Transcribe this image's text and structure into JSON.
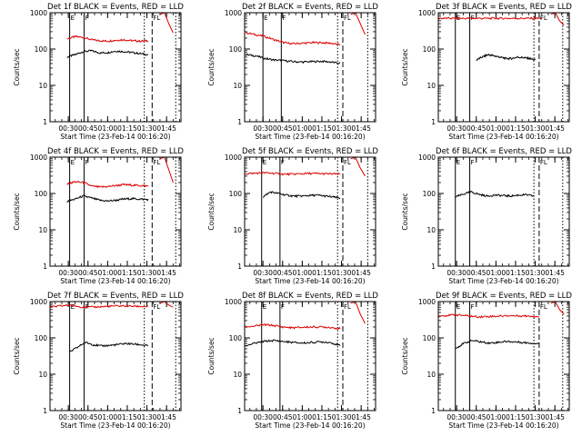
{
  "chart_data": [
    {
      "type": "line",
      "title": "Det 1f BLACK = Events, RED = LLD",
      "xlabel": "Start Time (23-Feb-14 00:16:20)",
      "ylabel": "Counts/sec",
      "yscale": "log",
      "ylim": [
        1,
        1000
      ],
      "xlim": [
        "00:16",
        "01:56"
      ],
      "x_ticks": [
        "00:30",
        "00:45",
        "01:00",
        "01:15",
        "01:30",
        "01:45"
      ],
      "y_ticks": [
        "1",
        "10",
        "100",
        "1000"
      ],
      "markers": [
        {
          "time": "00:31",
          "style": "solid",
          "label": "E"
        },
        {
          "time": "00:42",
          "style": "solid",
          "label": "F"
        },
        {
          "time": "01:28",
          "style": "dotted",
          "label": ""
        },
        {
          "time": "01:34",
          "style": "dashed",
          "label": "FL"
        },
        {
          "time": "01:52",
          "style": "dotted",
          "label": ""
        }
      ],
      "series": [
        {
          "key": "events",
          "color": "#000000",
          "x_range": [
            "00:29",
            "01:31"
          ],
          "values": [
            60,
            70,
            85,
            90,
            78,
            80,
            88,
            85,
            80,
            75,
            70
          ]
        },
        {
          "key": "lld",
          "color": "#dd0000",
          "x_range": [
            "00:29",
            "01:31"
          ],
          "values": [
            190,
            220,
            210,
            180,
            170,
            165,
            175,
            180,
            170,
            165,
            170
          ],
          "tail": {
            "x_range": [
              "01:40",
              "01:50"
            ],
            "values": [
              900,
              1000,
              500,
              280
            ]
          }
        }
      ]
    },
    {
      "type": "line",
      "title": "Det 2f BLACK = Events, RED = LLD",
      "xlabel": "Start Time (23-Feb-14 00:16:20)",
      "ylabel": "Counts/sec",
      "yscale": "log",
      "ylim": [
        1,
        1000
      ],
      "xlim": [
        "00:16",
        "01:56"
      ],
      "x_ticks": [
        "00:30",
        "00:45",
        "01:00",
        "01:15",
        "01:30",
        "01:45"
      ],
      "y_ticks": [
        "1",
        "10",
        "100",
        "1000"
      ],
      "markers": [
        {
          "time": "00:30",
          "style": "solid",
          "label": "E"
        },
        {
          "time": "00:44",
          "style": "solid",
          "label": "F"
        },
        {
          "time": "01:27",
          "style": "dotted",
          "label": ""
        },
        {
          "time": "01:31",
          "style": "dashed",
          "label": "FL"
        },
        {
          "time": "01:50",
          "style": "dotted",
          "label": ""
        }
      ],
      "series": [
        {
          "key": "events",
          "color": "#000000",
          "x_range": [
            "00:17",
            "01:29"
          ],
          "values": [
            70,
            65,
            55,
            50,
            48,
            45,
            44,
            45,
            46,
            44,
            40
          ]
        },
        {
          "key": "lld",
          "color": "#dd0000",
          "x_range": [
            "00:17",
            "01:29"
          ],
          "values": [
            280,
            250,
            220,
            180,
            150,
            140,
            145,
            150,
            150,
            145,
            130
          ],
          "tail": {
            "x_range": [
              "01:37",
              "01:48"
            ],
            "values": [
              900,
              1000,
              500,
              250
            ]
          }
        }
      ]
    },
    {
      "type": "line",
      "title": "Det 3f BLACK = Events, RED = LLD",
      "xlabel": "Start Time (23-Feb-14 00:16:20)",
      "ylabel": "Counts/sec",
      "yscale": "log",
      "ylim": [
        1,
        1000
      ],
      "xlim": [
        "00:16",
        "01:56"
      ],
      "x_ticks": [
        "00:30",
        "00:45",
        "01:00",
        "01:15",
        "01:30",
        "01:45"
      ],
      "y_ticks": [
        "1",
        "10",
        "100",
        "1000"
      ],
      "markers": [
        {
          "time": "00:29",
          "style": "solid",
          "label": "E"
        },
        {
          "time": "00:40",
          "style": "solid",
          "label": "F"
        },
        {
          "time": "01:29",
          "style": "dotted",
          "label": ""
        },
        {
          "time": "01:33",
          "style": "dashed",
          "label": "FL"
        },
        {
          "time": "01:51",
          "style": "dotted",
          "label": ""
        }
      ],
      "series": [
        {
          "key": "events",
          "color": "#000000",
          "x_range": [
            "00:45",
            "01:30"
          ],
          "values": [
            50,
            60,
            70,
            65,
            60,
            55,
            55,
            60,
            58,
            55,
            50
          ]
        },
        {
          "key": "lld",
          "color": "#dd0000",
          "x_range": [
            "00:16",
            "01:35"
          ],
          "values": [
            700,
            700,
            700,
            700,
            700,
            700,
            700,
            700,
            700,
            700,
            700
          ],
          "tail": {
            "x_range": [
              "01:42",
              "01:52"
            ],
            "values": [
              900,
              1000,
              600,
              450
            ]
          }
        }
      ]
    },
    {
      "type": "line",
      "title": "Det 4f BLACK = Events, RED = LLD",
      "xlabel": "Start Time (23-Feb-14 00:16:20)",
      "ylabel": "Counts/sec",
      "yscale": "log",
      "ylim": [
        1,
        1000
      ],
      "xlim": [
        "00:16",
        "01:56"
      ],
      "x_ticks": [
        "00:30",
        "00:45",
        "01:00",
        "01:15",
        "01:30",
        "01:45"
      ],
      "y_ticks": [
        "1",
        "10",
        "100",
        "1000"
      ],
      "markers": [
        {
          "time": "00:31",
          "style": "solid",
          "label": "E"
        },
        {
          "time": "00:42",
          "style": "solid",
          "label": "F"
        },
        {
          "time": "01:28",
          "style": "dotted",
          "label": ""
        },
        {
          "time": "01:34",
          "style": "dashed",
          "label": "FL"
        },
        {
          "time": "01:52",
          "style": "dotted",
          "label": ""
        }
      ],
      "series": [
        {
          "key": "events",
          "color": "#000000",
          "x_range": [
            "00:29",
            "01:31"
          ],
          "values": [
            60,
            70,
            85,
            75,
            65,
            62,
            65,
            70,
            72,
            70,
            68
          ]
        },
        {
          "key": "lld",
          "color": "#dd0000",
          "x_range": [
            "00:29",
            "01:31"
          ],
          "values": [
            180,
            210,
            200,
            160,
            150,
            155,
            165,
            175,
            170,
            165,
            160
          ],
          "tail": {
            "x_range": [
              "01:40",
              "01:50"
            ],
            "values": [
              900,
              1000,
              450,
              200
            ]
          }
        }
      ]
    },
    {
      "type": "line",
      "title": "Det 5f BLACK = Events, RED = LLD",
      "xlabel": "Start Time (23-Feb-14 00:16:20)",
      "ylabel": "Counts/sec",
      "yscale": "log",
      "ylim": [
        1,
        1000
      ],
      "xlim": [
        "00:16",
        "01:56"
      ],
      "x_ticks": [
        "00:30",
        "00:45",
        "01:00",
        "01:15",
        "01:30",
        "01:45"
      ],
      "y_ticks": [
        "1",
        "10",
        "100",
        "1000"
      ],
      "markers": [
        {
          "time": "00:29",
          "style": "solid",
          "label": "E"
        },
        {
          "time": "00:43",
          "style": "solid",
          "label": "F"
        },
        {
          "time": "01:27",
          "style": "dotted",
          "label": ""
        },
        {
          "time": "01:31",
          "style": "dashed",
          "label": "FL"
        },
        {
          "time": "01:50",
          "style": "dotted",
          "label": ""
        }
      ],
      "series": [
        {
          "key": "events",
          "color": "#000000",
          "x_range": [
            "00:30",
            "01:29"
          ],
          "values": [
            80,
            110,
            100,
            90,
            85,
            85,
            88,
            90,
            85,
            80,
            75
          ]
        },
        {
          "key": "lld",
          "color": "#dd0000",
          "x_range": [
            "00:16",
            "01:29"
          ],
          "values": [
            350,
            360,
            370,
            360,
            340,
            340,
            350,
            355,
            350,
            345,
            340
          ],
          "tail": {
            "x_range": [
              "01:37",
              "01:48"
            ],
            "values": [
              900,
              1000,
              500,
              300
            ]
          }
        }
      ]
    },
    {
      "type": "line",
      "title": "Det 6f BLACK = Events, RED = LLD",
      "xlabel": "Start Time (23-Feb-14 00:16:20)",
      "ylabel": "Counts/sec",
      "yscale": "log",
      "ylim": [
        1,
        1000
      ],
      "xlim": [
        "00:16",
        "01:56"
      ],
      "x_ticks": [
        "00:30",
        "00:45",
        "01:00",
        "01:15",
        "01:30",
        "01:45"
      ],
      "y_ticks": [
        "1",
        "10",
        "100",
        "1000"
      ],
      "markers": [
        {
          "time": "00:29",
          "style": "solid",
          "label": "E"
        },
        {
          "time": "00:40",
          "style": "solid",
          "label": "F"
        },
        {
          "time": "01:29",
          "style": "dotted",
          "label": ""
        },
        {
          "time": "01:33",
          "style": "dashed",
          "label": "FL"
        },
        {
          "time": "01:51",
          "style": "dotted",
          "label": ""
        }
      ],
      "series": [
        {
          "key": "events",
          "color": "#000000",
          "x_range": [
            "00:29",
            "01:29"
          ],
          "values": [
            80,
            95,
            110,
            95,
            85,
            90,
            88,
            85,
            90,
            92,
            85
          ]
        }
      ]
    },
    {
      "type": "line",
      "title": "Det 7f BLACK = Events, RED = LLD",
      "xlabel": "Start Time (23-Feb-14 00:16:20)",
      "ylabel": "Counts/sec",
      "yscale": "log",
      "ylim": [
        1,
        1000
      ],
      "xlim": [
        "00:16",
        "01:56"
      ],
      "x_ticks": [
        "00:30",
        "00:45",
        "01:00",
        "01:15",
        "01:30",
        "01:45"
      ],
      "y_ticks": [
        "1",
        "10",
        "100",
        "1000"
      ],
      "markers": [
        {
          "time": "00:31",
          "style": "solid",
          "label": "E"
        },
        {
          "time": "00:42",
          "style": "solid",
          "label": "F"
        },
        {
          "time": "01:28",
          "style": "dotted",
          "label": ""
        },
        {
          "time": "01:34",
          "style": "dashed",
          "label": "FL"
        },
        {
          "time": "01:52",
          "style": "dotted",
          "label": ""
        }
      ],
      "series": [
        {
          "key": "events",
          "color": "#000000",
          "x_range": [
            "00:31",
            "01:31"
          ],
          "values": [
            40,
            55,
            75,
            65,
            60,
            62,
            65,
            70,
            68,
            65,
            60
          ]
        },
        {
          "key": "lld",
          "color": "#dd0000",
          "x_range": [
            "00:16",
            "01:31"
          ],
          "values": [
            700,
            750,
            800,
            720,
            700,
            720,
            740,
            760,
            750,
            740,
            730
          ],
          "tail": {
            "x_range": [
              "01:40",
              "01:50"
            ],
            "values": [
              900,
              1000,
              800,
              700
            ]
          }
        }
      ]
    },
    {
      "type": "line",
      "title": "Det 8f BLACK = Events, RED = LLD",
      "xlabel": "Start Time (23-Feb-14 00:16:20)",
      "ylabel": "Counts/sec",
      "yscale": "log",
      "ylim": [
        1,
        1000
      ],
      "xlim": [
        "00:16",
        "01:56"
      ],
      "x_ticks": [
        "00:30",
        "00:45",
        "01:00",
        "01:15",
        "01:30",
        "01:45"
      ],
      "y_ticks": [
        "1",
        "10",
        "100",
        "1000"
      ],
      "markers": [
        {
          "time": "00:29",
          "style": "solid",
          "label": "E"
        },
        {
          "time": "00:43",
          "style": "solid",
          "label": "F"
        },
        {
          "time": "01:27",
          "style": "dotted",
          "label": ""
        },
        {
          "time": "01:31",
          "style": "dashed",
          "label": "FL"
        },
        {
          "time": "01:50",
          "style": "dotted",
          "label": ""
        }
      ],
      "series": [
        {
          "key": "events",
          "color": "#000000",
          "x_range": [
            "00:16",
            "01:29"
          ],
          "values": [
            60,
            70,
            80,
            85,
            80,
            75,
            72,
            75,
            78,
            75,
            60
          ]
        },
        {
          "key": "lld",
          "color": "#dd0000",
          "x_range": [
            "00:16",
            "01:29"
          ],
          "values": [
            200,
            210,
            230,
            220,
            200,
            190,
            195,
            200,
            200,
            195,
            180
          ],
          "tail": {
            "x_range": [
              "01:37",
              "01:48"
            ],
            "values": [
              900,
              1000,
              450,
              250
            ]
          }
        }
      ]
    },
    {
      "type": "line",
      "title": "Det 9f BLACK = Events, RED = LLD",
      "xlabel": "Start Time (23-Feb-14 00:16:20)",
      "ylabel": "Counts/sec",
      "yscale": "log",
      "ylim": [
        1,
        1000
      ],
      "xlim": [
        "00:16",
        "01:56"
      ],
      "x_ticks": [
        "00:30",
        "00:45",
        "01:00",
        "01:15",
        "01:30",
        "01:45"
      ],
      "y_ticks": [
        "1",
        "10",
        "100",
        "1000"
      ],
      "markers": [
        {
          "time": "00:29",
          "style": "solid",
          "label": "E"
        },
        {
          "time": "00:40",
          "style": "solid",
          "label": "F"
        },
        {
          "time": "01:29",
          "style": "dotted",
          "label": ""
        },
        {
          "time": "01:33",
          "style": "dashed",
          "label": "FL"
        },
        {
          "time": "01:51",
          "style": "dotted",
          "label": ""
        }
      ],
      "series": [
        {
          "key": "events",
          "color": "#000000",
          "x_range": [
            "00:29",
            "01:33"
          ],
          "values": [
            50,
            70,
            85,
            78,
            72,
            75,
            80,
            78,
            75,
            72,
            70
          ]
        },
        {
          "key": "lld",
          "color": "#dd0000",
          "x_range": [
            "00:16",
            "01:33"
          ],
          "values": [
            400,
            420,
            430,
            400,
            380,
            390,
            400,
            410,
            405,
            400,
            390
          ],
          "tail": {
            "x_range": [
              "01:42",
              "01:52"
            ],
            "values": [
              900,
              1000,
              600,
              450
            ]
          }
        }
      ]
    }
  ]
}
